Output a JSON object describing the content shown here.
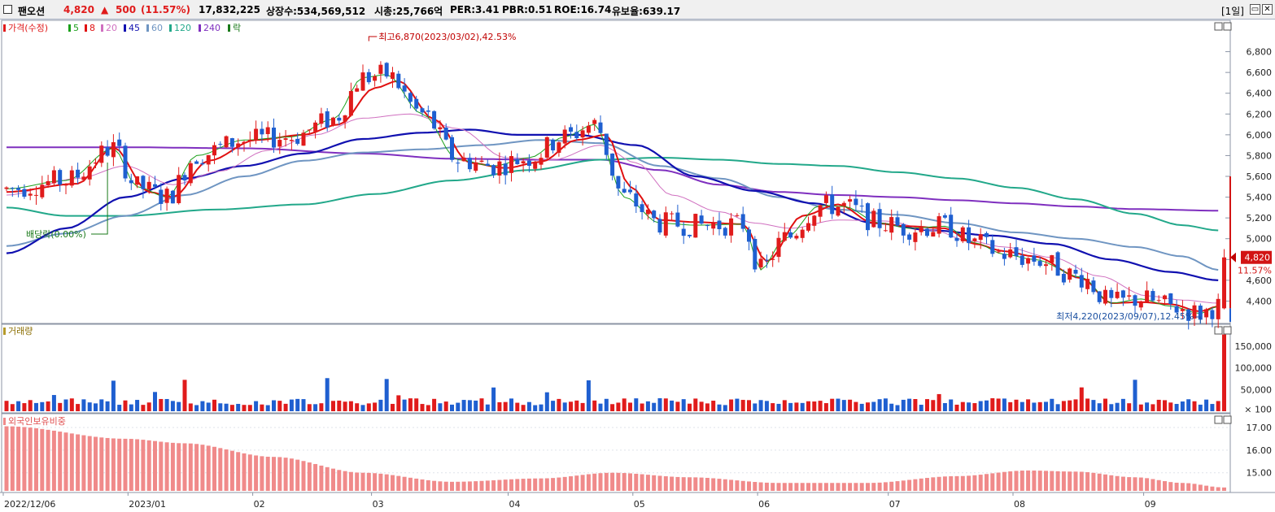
{
  "header": {
    "name": "팬오션",
    "price": "4,820",
    "change_arrow": "▲",
    "change": "500",
    "change_pct": "(11.57%)",
    "volume": "17,832,225",
    "shares": "상장수:534,569,512",
    "market_cap": "시총:25,766억",
    "per": "PER:3.41",
    "pbr": "PBR:0.51",
    "roe": "ROE:16.74",
    "reserve": "유보율:639.17",
    "period": "[1일]"
  },
  "panels": {
    "price_title": "가격(수정)",
    "ma_legend": [
      {
        "label": "5",
        "color": "#1aa01a"
      },
      {
        "label": "8",
        "color": "#e01010"
      },
      {
        "label": "20",
        "color": "#d070c0"
      },
      {
        "label": "45",
        "color": "#1010b0"
      },
      {
        "label": "60",
        "color": "#6f95c2"
      },
      {
        "label": "120",
        "color": "#22a88a"
      },
      {
        "label": "240",
        "color": "#7f2fbf"
      },
      {
        "label": "락",
        "color": "#1a7a1a"
      }
    ],
    "volume_title": "거래량",
    "foreign_title": "외국인보유비중"
  },
  "colors": {
    "up": "#e01b1b",
    "down": "#1f5fd0",
    "foreign_bar": "#f08a8a",
    "grid": "#dfe3ea",
    "axis": "#8c95a5"
  },
  "chart_data": [
    {
      "type": "candlestick",
      "title": "가격(수정)",
      "ylim": [
        4200,
        7000
      ],
      "y_ticks": [
        "6,800",
        "6,600",
        "6,400",
        "6,200",
        "6,000",
        "5,800",
        "5,600",
        "5,400",
        "5,200",
        "5,000",
        "4,800",
        "4,600",
        "4,400"
      ],
      "y_tick_values": [
        6800,
        6600,
        6400,
        6200,
        6000,
        5800,
        5600,
        5400,
        5200,
        5000,
        4800,
        4600,
        4400
      ],
      "x_labels": [
        "2022/12/06",
        "2023/01",
        "02",
        "03",
        "04",
        "05",
        "06",
        "07",
        "08",
        "09"
      ],
      "x_label_index": [
        0,
        21,
        42,
        62,
        85,
        106,
        127,
        149,
        170,
        192
      ],
      "annotations": {
        "high": "최고6,870(2023/03/02),42.53%",
        "high_index": 61,
        "high_value": 6870,
        "low": "최저4,220(2023/09/07),12.45%",
        "low_index": 201,
        "low_value": 4220,
        "dividend": "배당락(0.00%)",
        "dividend_index": 17
      },
      "last_price_label": "4,820",
      "last_pct_label": "11.57%",
      "last_value": 4820,
      "ma_anchors": {
        "5": [
          [
            0,
            5480
          ],
          [
            10,
            5560
          ],
          [
            18,
            5870
          ],
          [
            22,
            5500
          ],
          [
            27,
            5400
          ],
          [
            32,
            5800
          ],
          [
            40,
            5950
          ],
          [
            48,
            5980
          ],
          [
            55,
            6150
          ],
          [
            60,
            6550
          ],
          [
            64,
            6580
          ],
          [
            70,
            6200
          ],
          [
            76,
            5760
          ],
          [
            82,
            5700
          ],
          [
            88,
            5780
          ],
          [
            94,
            5980
          ],
          [
            99,
            6100
          ],
          [
            104,
            5400
          ],
          [
            110,
            5150
          ],
          [
            116,
            5130
          ],
          [
            124,
            5140
          ],
          [
            127,
            4700
          ],
          [
            131,
            5000
          ],
          [
            137,
            5320
          ],
          [
            141,
            5310
          ],
          [
            147,
            5150
          ],
          [
            152,
            5100
          ],
          [
            158,
            5120
          ],
          [
            163,
            4960
          ],
          [
            168,
            4850
          ],
          [
            173,
            4800
          ],
          [
            181,
            4630
          ],
          [
            186,
            4380
          ],
          [
            191,
            4420
          ],
          [
            196,
            4350
          ],
          [
            201,
            4280
          ],
          [
            204,
            4350
          ]
        ],
        "8": [
          [
            0,
            5450
          ],
          [
            12,
            5530
          ],
          [
            18,
            5880
          ],
          [
            24,
            5450
          ],
          [
            28,
            5400
          ],
          [
            34,
            5750
          ],
          [
            42,
            5950
          ],
          [
            50,
            6000
          ],
          [
            56,
            6100
          ],
          [
            62,
            6450
          ],
          [
            66,
            6520
          ],
          [
            72,
            6150
          ],
          [
            78,
            5730
          ],
          [
            84,
            5680
          ],
          [
            90,
            5740
          ],
          [
            96,
            5950
          ],
          [
            101,
            6000
          ],
          [
            105,
            5500
          ],
          [
            110,
            5180
          ],
          [
            116,
            5160
          ],
          [
            124,
            5140
          ],
          [
            128,
            4780
          ],
          [
            134,
            5220
          ],
          [
            140,
            5330
          ],
          [
            146,
            5150
          ],
          [
            152,
            5120
          ],
          [
            158,
            5100
          ],
          [
            163,
            4950
          ],
          [
            168,
            4880
          ],
          [
            173,
            4830
          ],
          [
            181,
            4620
          ],
          [
            186,
            4380
          ],
          [
            191,
            4390
          ],
          [
            196,
            4370
          ],
          [
            201,
            4300
          ],
          [
            204,
            4350
          ]
        ],
        "20": [
          [
            0,
            5420
          ],
          [
            12,
            5580
          ],
          [
            20,
            5700
          ],
          [
            28,
            5520
          ],
          [
            36,
            5650
          ],
          [
            44,
            5850
          ],
          [
            52,
            6000
          ],
          [
            60,
            6160
          ],
          [
            68,
            6200
          ],
          [
            76,
            6060
          ],
          [
            84,
            5780
          ],
          [
            92,
            5760
          ],
          [
            100,
            5900
          ],
          [
            106,
            5730
          ],
          [
            112,
            5420
          ],
          [
            120,
            5260
          ],
          [
            126,
            5150
          ],
          [
            132,
            5100
          ],
          [
            140,
            5180
          ],
          [
            148,
            5170
          ],
          [
            156,
            5080
          ],
          [
            162,
            4980
          ],
          [
            168,
            4920
          ],
          [
            176,
            4820
          ],
          [
            184,
            4640
          ],
          [
            192,
            4450
          ],
          [
            198,
            4410
          ],
          [
            204,
            4380
          ]
        ],
        "45": [
          [
            0,
            4860
          ],
          [
            10,
            5100
          ],
          [
            20,
            5400
          ],
          [
            30,
            5580
          ],
          [
            40,
            5700
          ],
          [
            50,
            5820
          ],
          [
            60,
            5960
          ],
          [
            70,
            6020
          ],
          [
            78,
            6050
          ],
          [
            86,
            6000
          ],
          [
            96,
            6000
          ],
          [
            106,
            5900
          ],
          [
            116,
            5600
          ],
          [
            126,
            5460
          ],
          [
            136,
            5340
          ],
          [
            146,
            5150
          ],
          [
            156,
            5080
          ],
          [
            166,
            5030
          ],
          [
            176,
            4950
          ],
          [
            186,
            4800
          ],
          [
            196,
            4680
          ],
          [
            204,
            4600
          ]
        ],
        "60": [
          [
            0,
            4930
          ],
          [
            10,
            5050
          ],
          [
            20,
            5220
          ],
          [
            30,
            5420
          ],
          [
            40,
            5600
          ],
          [
            50,
            5750
          ],
          [
            60,
            5830
          ],
          [
            70,
            5860
          ],
          [
            80,
            5900
          ],
          [
            90,
            5950
          ],
          [
            100,
            5920
          ],
          [
            110,
            5700
          ],
          [
            120,
            5580
          ],
          [
            130,
            5400
          ],
          [
            140,
            5280
          ],
          [
            150,
            5230
          ],
          [
            160,
            5150
          ],
          [
            170,
            5060
          ],
          [
            180,
            5000
          ],
          [
            190,
            4920
          ],
          [
            198,
            4830
          ],
          [
            204,
            4700
          ]
        ],
        "120": [
          [
            0,
            5300
          ],
          [
            10,
            5220
          ],
          [
            20,
            5220
          ],
          [
            35,
            5280
          ],
          [
            50,
            5330
          ],
          [
            62,
            5430
          ],
          [
            75,
            5560
          ],
          [
            88,
            5660
          ],
          [
            100,
            5760
          ],
          [
            110,
            5780
          ],
          [
            120,
            5760
          ],
          [
            130,
            5720
          ],
          [
            140,
            5700
          ],
          [
            150,
            5640
          ],
          [
            160,
            5580
          ],
          [
            170,
            5490
          ],
          [
            180,
            5380
          ],
          [
            190,
            5240
          ],
          [
            198,
            5130
          ],
          [
            204,
            5080
          ]
        ],
        "240": [
          [
            0,
            5880
          ],
          [
            20,
            5880
          ],
          [
            40,
            5870
          ],
          [
            60,
            5820
          ],
          [
            75,
            5770
          ],
          [
            90,
            5760
          ],
          [
            100,
            5760
          ],
          [
            110,
            5660
          ],
          [
            120,
            5520
          ],
          [
            130,
            5450
          ],
          [
            140,
            5420
          ],
          [
            150,
            5400
          ],
          [
            160,
            5370
          ],
          [
            170,
            5340
          ],
          [
            180,
            5310
          ],
          [
            190,
            5285
          ],
          [
            204,
            5270
          ]
        ]
      }
    },
    {
      "type": "bar",
      "title": "거래량",
      "ylim": [
        0,
        180000
      ],
      "y_ticks": [
        "150,000",
        "100,000",
        "50,000",
        "× 100"
      ],
      "y_tick_values": [
        150000,
        100000,
        50000,
        5000
      ],
      "last_value": 177000
    },
    {
      "type": "bar",
      "title": "외국인보유비중",
      "ylim": [
        14.2,
        17.5
      ],
      "y_ticks": [
        "17.00",
        "16.00",
        "15.00"
      ],
      "y_tick_values": [
        17,
        16,
        15
      ]
    }
  ]
}
